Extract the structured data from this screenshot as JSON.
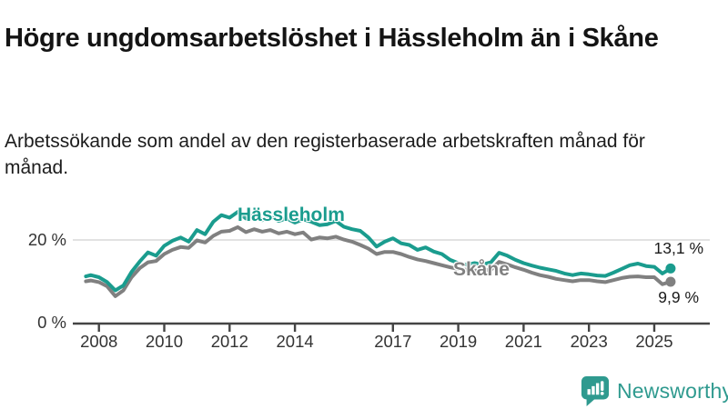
{
  "header": {
    "title": "Högre ungdomsarbetslöshet i Hässleholm än i Skåne",
    "subtitle": "Arbetssökande som andel av den registerbaserade arbetskraften månad för månad."
  },
  "chart_data": {
    "type": "line",
    "x_unit": "decimal_year",
    "xlim": [
      2007.2,
      2026.7
    ],
    "ylim": [
      0,
      31
    ],
    "grid": "horizontal-at-20-only",
    "gridlines": [
      20
    ],
    "gridline_color": "#d9d9d9",
    "axis_color": "#444444",
    "tick_label_color": "#333333",
    "y_ticks": [
      {
        "value": 0,
        "label": "0 %"
      },
      {
        "value": 20,
        "label": "20 %"
      }
    ],
    "x_ticks": [
      {
        "value": 2008,
        "label": "2008"
      },
      {
        "value": 2010,
        "label": "2010"
      },
      {
        "value": 2012,
        "label": "2012"
      },
      {
        "value": 2014,
        "label": "2014"
      },
      {
        "value": 2017,
        "label": "2017"
      },
      {
        "value": 2019,
        "label": "2019"
      },
      {
        "value": 2021,
        "label": "2021"
      },
      {
        "value": 2023,
        "label": "2023"
      },
      {
        "value": 2025,
        "label": "2025"
      }
    ],
    "x": [
      2007.6,
      2007.75,
      2008.0,
      2008.25,
      2008.5,
      2008.75,
      2009.0,
      2009.25,
      2009.5,
      2009.75,
      2010.0,
      2010.25,
      2010.5,
      2010.75,
      2011.0,
      2011.25,
      2011.5,
      2011.75,
      2012.0,
      2012.25,
      2012.5,
      2012.75,
      2013.0,
      2013.25,
      2013.5,
      2013.75,
      2014.0,
      2014.25,
      2014.5,
      2014.75,
      2015.0,
      2015.25,
      2015.5,
      2015.75,
      2016.0,
      2016.25,
      2016.5,
      2016.75,
      2017.0,
      2017.25,
      2017.5,
      2017.75,
      2018.0,
      2018.25,
      2018.5,
      2018.75,
      2019.0,
      2019.25,
      2019.5,
      2019.75,
      2020.0,
      2020.25,
      2020.5,
      2020.75,
      2021.0,
      2021.25,
      2021.5,
      2021.75,
      2022.0,
      2022.25,
      2022.5,
      2022.75,
      2023.0,
      2023.25,
      2023.5,
      2023.75,
      2024.0,
      2024.25,
      2024.5,
      2024.75,
      2025.0,
      2025.25,
      2025.5
    ],
    "series": [
      {
        "name": "Hässleholm",
        "color": "#1a9c8e",
        "end_label": "13,1 %",
        "end_value": 13.1,
        "values": [
          11.2,
          11.5,
          11.0,
          9.8,
          7.8,
          9.0,
          12.3,
          14.8,
          17.0,
          16.2,
          18.6,
          19.8,
          20.6,
          19.6,
          22.4,
          21.4,
          24.4,
          26.0,
          25.4,
          26.8,
          25.2,
          26.2,
          24.8,
          25.6,
          24.6,
          25.2,
          24.2,
          25.0,
          24.4,
          23.6,
          23.8,
          24.6,
          23.2,
          22.6,
          22.2,
          20.6,
          18.4,
          19.6,
          20.4,
          19.2,
          18.8,
          17.6,
          18.2,
          17.2,
          16.6,
          15.2,
          14.4,
          14.0,
          14.4,
          14.1,
          14.6,
          16.9,
          16.2,
          15.2,
          14.4,
          13.8,
          13.3,
          12.9,
          12.5,
          11.9,
          11.5,
          11.9,
          11.7,
          11.4,
          11.3,
          12.1,
          13.0,
          13.9,
          14.3,
          13.7,
          13.5,
          11.9,
          13.1
        ]
      },
      {
        "name": "Skåne",
        "color": "#808080",
        "end_label": "9,9 %",
        "end_value": 9.9,
        "values": [
          10.0,
          10.2,
          9.8,
          8.8,
          6.4,
          7.8,
          11.0,
          13.2,
          14.6,
          14.9,
          16.6,
          17.6,
          18.3,
          18.1,
          19.9,
          19.4,
          21.0,
          22.0,
          22.2,
          23.1,
          21.9,
          22.6,
          22.0,
          22.4,
          21.6,
          22.0,
          21.4,
          21.8,
          20.1,
          20.6,
          20.4,
          20.8,
          20.1,
          19.6,
          18.8,
          17.9,
          16.6,
          17.1,
          17.1,
          16.6,
          15.9,
          15.3,
          14.9,
          14.4,
          13.9,
          13.4,
          13.0,
          12.8,
          12.6,
          12.7,
          12.8,
          14.7,
          14.1,
          13.4,
          12.8,
          12.1,
          11.5,
          11.1,
          10.6,
          10.3,
          10.0,
          10.3,
          10.3,
          10.0,
          9.8,
          10.3,
          10.8,
          11.1,
          11.2,
          11.0,
          11.0,
          9.3,
          9.9
        ]
      }
    ]
  },
  "footer": {
    "brand": "Newsworthy",
    "brand_color": "#2f9a8f",
    "logo_icon": "bar-chart-speech-bubble-icon"
  }
}
